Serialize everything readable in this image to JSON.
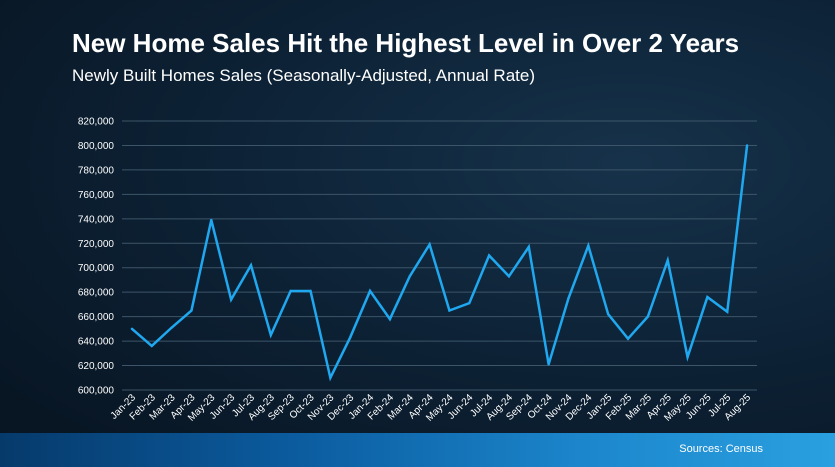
{
  "title": "New Home Sales Hit the Highest Level in Over 2 Years",
  "subtitle": "Newly Built Homes Sales (Seasonally-Adjusted, Annual Rate)",
  "source": "Sources: Census",
  "colors": {
    "line": "#1fa8f0",
    "grid": "#3c5568",
    "text": "#ffffff"
  },
  "chart_data": {
    "type": "line",
    "title": "New Home Sales Hit the Highest Level in Over 2 Years",
    "subtitle": "Newly Built Homes Sales (Seasonally-Adjusted, Annual Rate)",
    "xlabel": "",
    "ylabel": "",
    "ylim": [
      600000,
      820000
    ],
    "ytick_step": 20000,
    "yticks": [
      "600,000",
      "620,000",
      "640,000",
      "660,000",
      "680,000",
      "700,000",
      "720,000",
      "740,000",
      "760,000",
      "780,000",
      "800,000",
      "820,000"
    ],
    "grid": true,
    "categories": [
      "Jan-23",
      "Feb-23",
      "Mar-23",
      "Apr-23",
      "May-23",
      "Jun-23",
      "Jul-23",
      "Aug-23",
      "Sep-23",
      "Oct-23",
      "Nov-23",
      "Dec-23",
      "Jan-24",
      "Feb-24",
      "Mar-24",
      "Apr-24",
      "May-24",
      "Jun-24",
      "Jul-24",
      "Aug-24",
      "Sep-24",
      "Oct-24",
      "Nov-24",
      "Dec-24",
      "Jan-25",
      "Feb-25",
      "Mar-25",
      "Apr-25",
      "May-25",
      "Jun-25",
      "Jul-25",
      "Aug-25"
    ],
    "series": [
      {
        "values": [
          650000,
          636000,
          651000,
          665000,
          739000,
          674000,
          702000,
          645000,
          681000,
          681000,
          610000,
          643000,
          681000,
          658000,
          693000,
          719000,
          665000,
          671000,
          710000,
          693000,
          717000,
          621000,
          675000,
          718000,
          662000,
          642000,
          660000,
          706000,
          627000,
          676000,
          664000,
          800000
        ]
      }
    ]
  }
}
